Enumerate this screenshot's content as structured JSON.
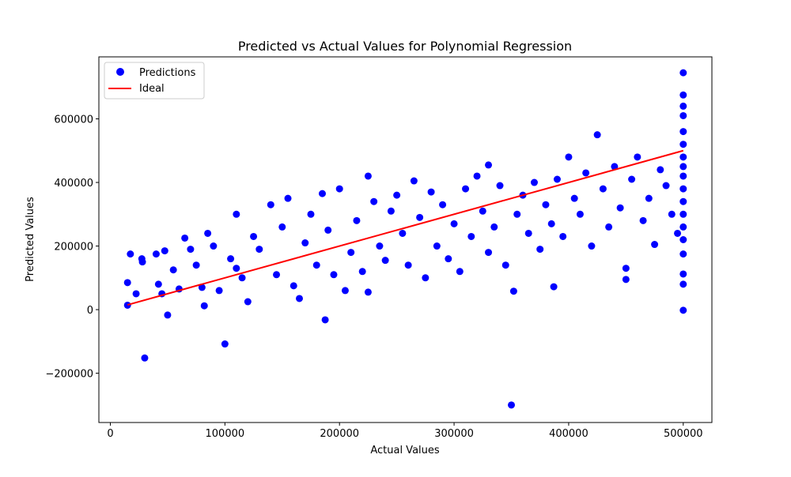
{
  "chart_data": {
    "type": "scatter",
    "title": "Predicted vs Actual Values for Polynomial Regression",
    "xlabel": "Actual Values",
    "ylabel": "Predicted Values",
    "xlim": [
      -10000,
      525000
    ],
    "ylim": [
      -355000,
      795000
    ],
    "xticks": [
      {
        "value": 0,
        "label": "0"
      },
      {
        "value": 100000,
        "label": "100000"
      },
      {
        "value": 200000,
        "label": "200000"
      },
      {
        "value": 300000,
        "label": "300000"
      },
      {
        "value": 400000,
        "label": "400000"
      },
      {
        "value": 500000,
        "label": "500000"
      }
    ],
    "yticks": [
      {
        "value": -200000,
        "label": "−200000"
      },
      {
        "value": 0,
        "label": "0"
      },
      {
        "value": 200000,
        "label": "200000"
      },
      {
        "value": 400000,
        "label": "400000"
      },
      {
        "value": 600000,
        "label": "600000"
      }
    ],
    "legend": {
      "position": "top-left",
      "entries": [
        "Predictions",
        "Ideal"
      ]
    },
    "grid": false,
    "colors": {
      "predictions": "#0000ff",
      "ideal": "#ff0000"
    },
    "series": [
      {
        "name": "Predictions",
        "kind": "scatter",
        "points": [
          [
            14999,
            14000
          ],
          [
            15000,
            85000
          ],
          [
            17500,
            175000
          ],
          [
            22500,
            50000
          ],
          [
            27500,
            160000
          ],
          [
            28000,
            150000
          ],
          [
            30000,
            -152000
          ],
          [
            40000,
            175000
          ],
          [
            42000,
            80000
          ],
          [
            45000,
            50000
          ],
          [
            47500,
            185000
          ],
          [
            50000,
            -17000
          ],
          [
            55000,
            125000
          ],
          [
            60000,
            65000
          ],
          [
            65000,
            225000
          ],
          [
            70000,
            190000
          ],
          [
            75000,
            140000
          ],
          [
            80000,
            70000
          ],
          [
            82000,
            12000
          ],
          [
            85000,
            240000
          ],
          [
            90000,
            200000
          ],
          [
            95000,
            60000
          ],
          [
            100000,
            -108000
          ],
          [
            105000,
            160000
          ],
          [
            110000,
            130000
          ],
          [
            110000,
            300000
          ],
          [
            115000,
            100000
          ],
          [
            120000,
            25000
          ],
          [
            125000,
            230000
          ],
          [
            130000,
            190000
          ],
          [
            140000,
            330000
          ],
          [
            145000,
            110000
          ],
          [
            150000,
            260000
          ],
          [
            155000,
            350000
          ],
          [
            160000,
            75000
          ],
          [
            165000,
            35000
          ],
          [
            170000,
            210000
          ],
          [
            175000,
            300000
          ],
          [
            180000,
            140000
          ],
          [
            185000,
            365000
          ],
          [
            187500,
            -32000
          ],
          [
            190000,
            250000
          ],
          [
            195000,
            110000
          ],
          [
            200000,
            380000
          ],
          [
            205000,
            60000
          ],
          [
            210000,
            180000
          ],
          [
            215000,
            280000
          ],
          [
            220000,
            120000
          ],
          [
            225000,
            420000
          ],
          [
            225000,
            55000
          ],
          [
            230000,
            340000
          ],
          [
            235000,
            200000
          ],
          [
            240000,
            155000
          ],
          [
            245000,
            310000
          ],
          [
            250000,
            360000
          ],
          [
            255000,
            240000
          ],
          [
            260000,
            140000
          ],
          [
            265000,
            405000
          ],
          [
            270000,
            290000
          ],
          [
            275000,
            100000
          ],
          [
            280000,
            370000
          ],
          [
            285000,
            200000
          ],
          [
            290000,
            330000
          ],
          [
            295000,
            160000
          ],
          [
            300000,
            270000
          ],
          [
            305000,
            120000
          ],
          [
            310000,
            380000
          ],
          [
            315000,
            230000
          ],
          [
            320000,
            420000
          ],
          [
            325000,
            310000
          ],
          [
            330000,
            180000
          ],
          [
            330000,
            455000
          ],
          [
            335000,
            260000
          ],
          [
            340000,
            390000
          ],
          [
            345000,
            140000
          ],
          [
            350000,
            -300000
          ],
          [
            352000,
            58000
          ],
          [
            355000,
            300000
          ],
          [
            360000,
            360000
          ],
          [
            365000,
            240000
          ],
          [
            370000,
            400000
          ],
          [
            375000,
            190000
          ],
          [
            380000,
            330000
          ],
          [
            385000,
            270000
          ],
          [
            387000,
            72000
          ],
          [
            390000,
            410000
          ],
          [
            395000,
            230000
          ],
          [
            400000,
            480000
          ],
          [
            405000,
            350000
          ],
          [
            410000,
            300000
          ],
          [
            415000,
            430000
          ],
          [
            420000,
            200000
          ],
          [
            425000,
            550000
          ],
          [
            430000,
            380000
          ],
          [
            435000,
            260000
          ],
          [
            440000,
            450000
          ],
          [
            445000,
            320000
          ],
          [
            450000,
            95000
          ],
          [
            450000,
            130000
          ],
          [
            455000,
            410000
          ],
          [
            460000,
            480000
          ],
          [
            465000,
            280000
          ],
          [
            470000,
            350000
          ],
          [
            475000,
            205000
          ],
          [
            480000,
            440000
          ],
          [
            485000,
            390000
          ],
          [
            490000,
            300000
          ],
          [
            495000,
            240000
          ],
          [
            500000,
            745000
          ],
          [
            500000,
            675000
          ],
          [
            500000,
            640000
          ],
          [
            500000,
            610000
          ],
          [
            500000,
            560000
          ],
          [
            500000,
            520000
          ],
          [
            500000,
            480000
          ],
          [
            500000,
            450000
          ],
          [
            500000,
            420000
          ],
          [
            500000,
            380000
          ],
          [
            500000,
            340000
          ],
          [
            500000,
            300000
          ],
          [
            500000,
            260000
          ],
          [
            500000,
            220000
          ],
          [
            500000,
            175000
          ],
          [
            500000,
            112000
          ],
          [
            500000,
            80000
          ],
          [
            500000,
            -2000
          ]
        ]
      },
      {
        "name": "Ideal",
        "kind": "line",
        "points": [
          [
            14999,
            14999
          ],
          [
            500001,
            500001
          ]
        ]
      }
    ]
  }
}
